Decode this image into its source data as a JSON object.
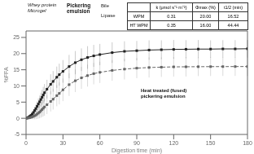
{
  "chart_data": {
    "type": "line",
    "xlabel": "Digestion time (min)",
    "ylabel": "%FFA",
    "xlim": [
      0,
      180
    ],
    "ylim": [
      -5,
      27
    ],
    "xticks": [
      0,
      30,
      60,
      90,
      120,
      150,
      180
    ],
    "yticks": [
      -5,
      0,
      5,
      10,
      15,
      20,
      25
    ],
    "grid": false,
    "x": [
      0,
      1,
      2,
      3,
      4,
      5,
      6,
      7,
      8,
      9,
      10,
      11,
      12,
      13,
      14,
      15,
      17,
      20,
      22,
      25,
      27,
      30,
      35,
      40,
      45,
      50,
      55,
      60,
      70,
      80,
      90,
      100,
      110,
      120,
      130,
      140,
      150,
      160,
      170,
      180
    ],
    "series": [
      {
        "color": "#222222",
        "line_style": "solid",
        "marker": "square",
        "values": [
          0,
          0.15,
          0.35,
          0.6,
          0.9,
          1.3,
          1.8,
          2.4,
          3.0,
          3.7,
          4.4,
          5.1,
          5.8,
          6.5,
          7.2,
          7.9,
          9.0,
          10.5,
          11.4,
          12.7,
          13.5,
          14.5,
          16.0,
          17.2,
          18.1,
          18.8,
          19.3,
          19.7,
          20.3,
          20.7,
          20.9,
          21.1,
          21.2,
          21.3,
          21.35,
          21.4,
          21.4,
          21.45,
          21.45,
          21.5
        ],
        "error": [
          0.05,
          0.1,
          0.2,
          0.3,
          0.5,
          0.7,
          0.9,
          1.1,
          1.3,
          1.5,
          1.7,
          1.9,
          2.1,
          2.3,
          2.5,
          2.7,
          2.9,
          3.1,
          3.2,
          3.3,
          3.4,
          3.5,
          3.6,
          3.6,
          3.5,
          3.5,
          3.4,
          3.3,
          3.2,
          3.1,
          3.0,
          3.0,
          2.9,
          2.9,
          2.8,
          2.8,
          2.7,
          2.7,
          2.7,
          2.7
        ]
      },
      {
        "color": "#666666",
        "line_style": "dashed",
        "marker": "square",
        "values": [
          0,
          0.05,
          0.1,
          0.2,
          0.3,
          0.45,
          0.6,
          0.8,
          1.0,
          1.3,
          1.6,
          1.9,
          2.3,
          2.7,
          3.1,
          3.5,
          4.2,
          5.2,
          5.9,
          7.0,
          7.7,
          8.8,
          10.4,
          11.6,
          12.5,
          13.2,
          13.8,
          14.2,
          14.8,
          15.2,
          15.5,
          15.7,
          15.8,
          15.9,
          15.92,
          15.95,
          15.97,
          15.98,
          15.99,
          16.0
        ],
        "error": [
          0.05,
          0.1,
          0.2,
          0.3,
          0.5,
          0.7,
          0.9,
          1.1,
          1.3,
          1.5,
          1.7,
          1.9,
          2.1,
          2.3,
          2.5,
          2.7,
          2.9,
          3.1,
          3.2,
          3.3,
          3.4,
          3.5,
          3.5,
          3.5,
          3.4,
          3.4,
          3.3,
          3.3,
          3.2,
          3.2,
          3.1,
          3.1,
          3.0,
          3.0,
          3.0,
          2.9,
          2.9,
          2.9,
          2.9,
          2.9
        ]
      }
    ],
    "annotations": [
      "Whey protein\nMicrogel",
      "Pickering\nemulsion",
      "Bile",
      "Lipase",
      "Heat treated (fused)\npickering emulsion"
    ],
    "table": {
      "header": [
        "k (μmol s⁻¹ m⁻²)",
        "Φmax (%)",
        "t1/2 (min)"
      ],
      "rows": [
        [
          "WPM",
          "0.31",
          "20.00",
          "16.52"
        ],
        [
          "HT WPM",
          "0.35",
          "16.00",
          "44.44"
        ]
      ]
    }
  }
}
